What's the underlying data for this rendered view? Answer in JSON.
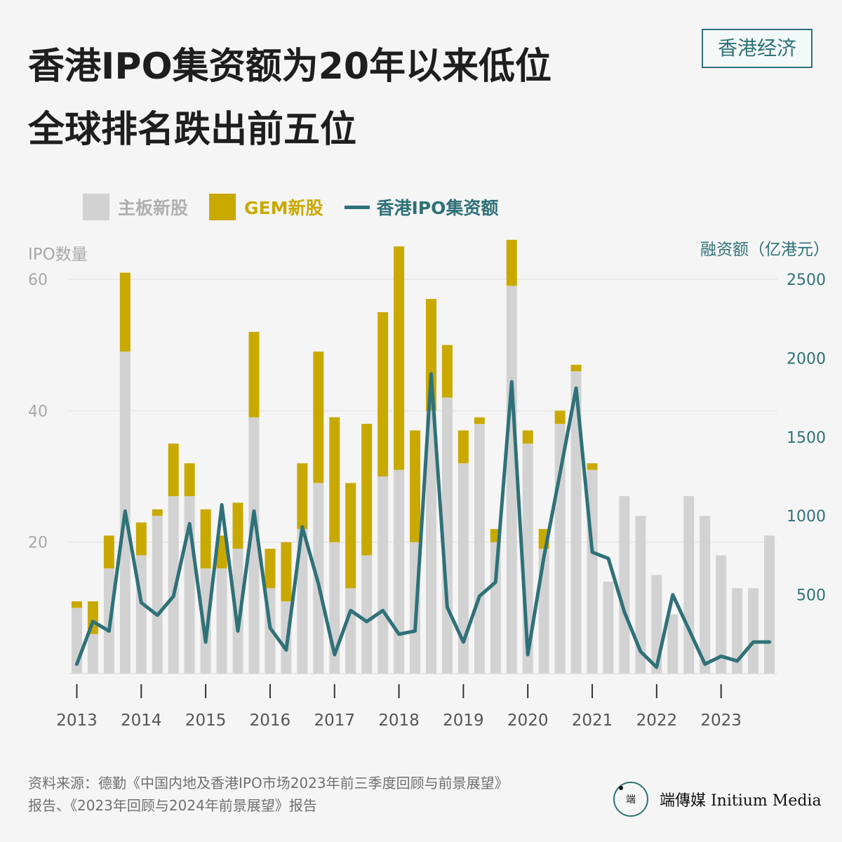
{
  "title_lines": [
    "香港IPO集资额为20年以来低位",
    "全球排名跌出前五位"
  ],
  "tag": "香港经济",
  "legend": {
    "main": "主板新股",
    "gem": "GEM新股",
    "line": "香港IPO集资额"
  },
  "colors": {
    "main": "#d2d2d2",
    "gem": "#c9a900",
    "line": "#2f7178",
    "left_axis": "#a8a8a8",
    "grid": "#e0e0e0"
  },
  "source": {
    "line1": "资料来源：德勤《中国内地及香港IPO市场2023年前三季度回顾与前景展望》",
    "line2": "报告、《2023年回顾与2024年前景展望》报告"
  },
  "logo": {
    "mark": "端",
    "name": "端傳媒 Initium Media"
  },
  "chart_data": {
    "type": "bar",
    "y_left_label": "IPO数量",
    "y_right_label": "融资额（亿港元）",
    "ylim_left": [
      0,
      60
    ],
    "yticks_left": [
      20,
      40,
      60
    ],
    "ylim_right": [
      0,
      2500
    ],
    "yticks_right": [
      500,
      1000,
      1500,
      2000,
      2500
    ],
    "grid": true,
    "x_tick_labels": [
      "2013",
      "2014",
      "2015",
      "2016",
      "2017",
      "2018",
      "2019",
      "2020",
      "2021",
      "2022",
      "2023"
    ],
    "categories": [
      "2013Q1",
      "2013Q2",
      "2013Q3",
      "2013Q4",
      "2014Q1",
      "2014Q2",
      "2014Q3",
      "2014Q4",
      "2015Q1",
      "2015Q2",
      "2015Q3",
      "2015Q4",
      "2016Q1",
      "2016Q2",
      "2016Q3",
      "2016Q4",
      "2017Q1",
      "2017Q2",
      "2017Q3",
      "2017Q4",
      "2018Q1",
      "2018Q2",
      "2018Q3",
      "2018Q4",
      "2019Q1",
      "2019Q2",
      "2019Q3",
      "2019Q4",
      "2020Q1",
      "2020Q2",
      "2020Q3",
      "2020Q4",
      "2021Q1",
      "2021Q2",
      "2021Q3",
      "2021Q4",
      "2022Q1",
      "2022Q2",
      "2022Q3",
      "2022Q4",
      "2023Q1",
      "2023Q2",
      "2023Q3",
      "2023Q4"
    ],
    "series": [
      {
        "name": "主板新股",
        "kind": "bar-stack",
        "values": [
          10,
          6,
          16,
          49,
          18,
          24,
          27,
          27,
          16,
          16,
          19,
          39,
          13,
          11,
          22,
          29,
          20,
          13,
          18,
          30,
          31,
          20,
          40,
          42,
          32,
          38,
          20,
          59,
          35,
          19,
          38,
          46,
          31,
          14,
          27,
          24,
          15,
          9,
          27,
          24,
          18,
          13,
          13,
          21
        ]
      },
      {
        "name": "GEM新股",
        "kind": "bar-stack",
        "values": [
          1,
          5,
          5,
          12,
          5,
          1,
          8,
          5,
          9,
          5,
          7,
          13,
          6,
          9,
          10,
          20,
          19,
          16,
          20,
          25,
          34,
          17,
          17,
          8,
          5,
          1,
          2,
          7,
          2,
          3,
          2,
          1,
          1,
          0,
          0,
          0,
          0,
          0,
          0,
          0,
          0,
          0,
          0,
          0
        ]
      },
      {
        "name": "香港IPO集资额",
        "kind": "line",
        "axis": "right",
        "values": [
          60,
          330,
          270,
          1030,
          450,
          370,
          490,
          950,
          200,
          1070,
          270,
          1030,
          290,
          150,
          930,
          570,
          120,
          400,
          330,
          400,
          250,
          270,
          1900,
          420,
          200,
          490,
          580,
          1850,
          120,
          740,
          1270,
          1810,
          770,
          730,
          390,
          140,
          40,
          500,
          280,
          60,
          110,
          80,
          200,
          200
        ]
      }
    ]
  }
}
